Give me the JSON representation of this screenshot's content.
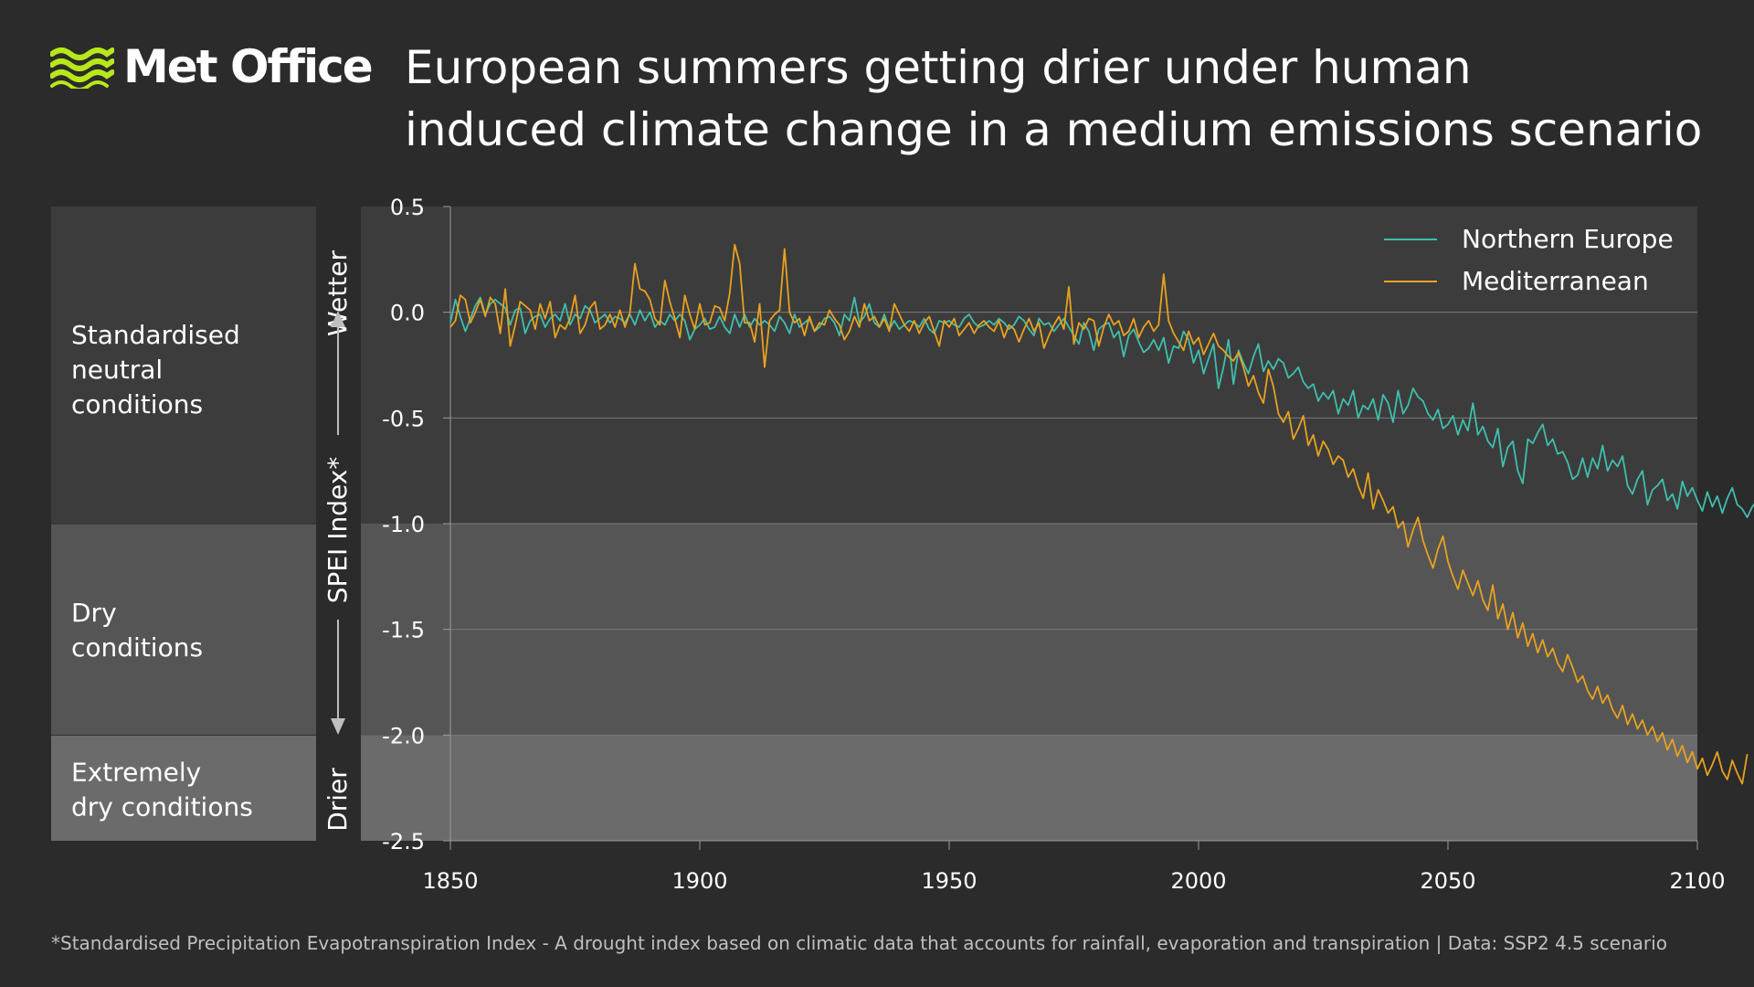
{
  "brand": {
    "name": "Met Office",
    "accent_color": "#b7e81a"
  },
  "title_lines": [
    "European summers getting drier under human",
    "induced climate change in a medium emissions scenario"
  ],
  "bands": [
    {
      "label_lines": [
        "Standardised",
        "neutral",
        "conditions"
      ],
      "y_from": 0.5,
      "y_to": -1.0,
      "color": "#3c3c3c"
    },
    {
      "label_lines": [
        "Dry",
        "conditions"
      ],
      "y_from": -1.0,
      "y_to": -2.0,
      "color": "#555555"
    },
    {
      "label_lines": [
        "Extremely",
        "dry conditions"
      ],
      "y_from": -2.0,
      "y_to": -2.5,
      "color": "#6b6b6b"
    }
  ],
  "axis_annotations": {
    "top": "Wetter",
    "middle": "SPEI Index*",
    "bottom": "Drier"
  },
  "footnote": "*Standardised Precipitation Evapotranspiration Index - A drought index based on climatic data that accounts for rainfall, evaporation and transpiration  |  Data: SSP2 4.5 scenario",
  "chart_data": {
    "type": "line",
    "xlim": [
      1850,
      2100
    ],
    "ylim": [
      -2.5,
      0.5
    ],
    "x_ticks": [
      "1850",
      "1900",
      "1950",
      "2000",
      "2050",
      "2100"
    ],
    "y_ticks": [
      "0.5",
      "0.0",
      "-0.5",
      "-1.0",
      "-1.5",
      "-2.0",
      "-2.5"
    ],
    "gridlines": "horizontal",
    "legend_position": "top-right",
    "series": [
      {
        "name": "Northern Europe",
        "color": "#3fbfad",
        "x_start": 1850,
        "x_step": 1,
        "values": [
          -0.05,
          0.06,
          -0.02,
          -0.09,
          -0.03,
          0.03,
          0.07,
          -0.01,
          0.04,
          0.06,
          0.04,
          0.02,
          -0.06,
          0.01,
          0.02,
          -0.1,
          -0.04,
          -0.02,
          -0.01,
          -0.07,
          -0.03,
          -0.01,
          -0.04,
          0.04,
          -0.06,
          -0.01,
          -0.03,
          0.03,
          0.01,
          -0.05,
          -0.03,
          -0.01,
          -0.05,
          -0.02,
          -0.03,
          -0.05,
          -0.01,
          -0.06,
          0.01,
          -0.04,
          0.0,
          -0.07,
          -0.04,
          -0.06,
          -0.01,
          -0.04,
          -0.01,
          -0.04,
          -0.13,
          -0.08,
          -0.06,
          -0.03,
          -0.08,
          -0.07,
          -0.02,
          -0.07,
          -0.1,
          -0.01,
          -0.07,
          -0.01,
          -0.07,
          -0.03,
          -0.06,
          -0.04,
          -0.06,
          -0.09,
          -0.02,
          -0.05,
          -0.1,
          -0.01,
          -0.07,
          -0.05,
          -0.03,
          -0.09,
          -0.07,
          -0.03,
          -0.02,
          -0.05,
          -0.11,
          -0.01,
          -0.04,
          0.07,
          -0.05,
          -0.02,
          0.04,
          -0.05,
          -0.07,
          -0.01,
          -0.08,
          -0.04,
          -0.08,
          -0.06,
          -0.04,
          -0.05,
          -0.07,
          -0.03,
          -0.08,
          -0.1,
          -0.04,
          -0.05,
          -0.04,
          -0.06,
          -0.07,
          -0.03,
          -0.01,
          -0.05,
          -0.07,
          -0.06,
          -0.04,
          -0.06,
          -0.03,
          -0.05,
          -0.08,
          -0.06,
          -0.02,
          -0.04,
          -0.08,
          -0.11,
          -0.03,
          -0.06,
          -0.05,
          -0.09,
          -0.06,
          -0.03,
          -0.07,
          -0.11,
          -0.15,
          -0.05,
          -0.09,
          -0.18,
          -0.08,
          -0.06,
          -0.05,
          -0.12,
          -0.09,
          -0.21,
          -0.11,
          -0.08,
          -0.14,
          -0.19,
          -0.17,
          -0.13,
          -0.18,
          -0.12,
          -0.24,
          -0.16,
          -0.17,
          -0.09,
          -0.13,
          -0.24,
          -0.18,
          -0.29,
          -0.22,
          -0.15,
          -0.36,
          -0.26,
          -0.13,
          -0.34,
          -0.18,
          -0.24,
          -0.29,
          -0.21,
          -0.15,
          -0.28,
          -0.23,
          -0.27,
          -0.22,
          -0.24,
          -0.31,
          -0.29,
          -0.26,
          -0.33,
          -0.36,
          -0.34,
          -0.42,
          -0.38,
          -0.41,
          -0.37,
          -0.48,
          -0.41,
          -0.44,
          -0.37,
          -0.5,
          -0.44,
          -0.46,
          -0.41,
          -0.51,
          -0.39,
          -0.43,
          -0.52,
          -0.37,
          -0.48,
          -0.44,
          -0.36,
          -0.4,
          -0.42,
          -0.48,
          -0.51,
          -0.46,
          -0.55,
          -0.53,
          -0.49,
          -0.58,
          -0.51,
          -0.56,
          -0.43,
          -0.58,
          -0.54,
          -0.61,
          -0.64,
          -0.55,
          -0.73,
          -0.64,
          -0.61,
          -0.75,
          -0.81,
          -0.6,
          -0.62,
          -0.57,
          -0.53,
          -0.63,
          -0.6,
          -0.67,
          -0.66,
          -0.71,
          -0.79,
          -0.77,
          -0.69,
          -0.78,
          -0.69,
          -0.74,
          -0.63,
          -0.75,
          -0.7,
          -0.73,
          -0.68,
          -0.82,
          -0.86,
          -0.79,
          -0.75,
          -0.91,
          -0.84,
          -0.82,
          -0.79,
          -0.89,
          -0.86,
          -0.93,
          -0.8,
          -0.87,
          -0.83,
          -0.89,
          -0.94,
          -0.85,
          -0.92,
          -0.87,
          -0.95,
          -0.88,
          -0.83,
          -0.91,
          -0.93,
          -0.97,
          -0.92,
          -0.89,
          -1.04,
          -0.92,
          -0.96,
          -0.84,
          -1.0
        ]
      },
      {
        "name": "Mediterranean",
        "color": "#e8a21f",
        "x_start": 1850,
        "x_step": 1,
        "values": [
          -0.07,
          -0.04,
          0.08,
          0.06,
          -0.05,
          0.0,
          0.06,
          -0.02,
          0.07,
          0.04,
          -0.1,
          0.11,
          -0.16,
          -0.06,
          0.05,
          0.03,
          0.01,
          -0.08,
          0.04,
          -0.03,
          0.05,
          -0.12,
          -0.06,
          -0.08,
          -0.03,
          0.08,
          -0.1,
          -0.06,
          0.02,
          0.05,
          -0.08,
          -0.06,
          -0.01,
          -0.07,
          0.01,
          -0.07,
          0.0,
          0.23,
          0.11,
          0.1,
          0.06,
          -0.03,
          -0.06,
          0.15,
          0.05,
          -0.03,
          -0.12,
          0.08,
          -0.01,
          -0.08,
          0.04,
          -0.06,
          -0.05,
          0.03,
          0.02,
          -0.04,
          0.09,
          0.32,
          0.23,
          -0.05,
          -0.05,
          -0.14,
          0.04,
          -0.26,
          -0.04,
          -0.01,
          0.01,
          0.3,
          0.0,
          -0.05,
          -0.03,
          -0.11,
          -0.02,
          -0.09,
          -0.05,
          -0.06,
          0.01,
          -0.03,
          -0.06,
          -0.13,
          -0.09,
          -0.02,
          -0.07,
          0.04,
          -0.04,
          -0.02,
          -0.07,
          -0.03,
          -0.09,
          0.04,
          -0.01,
          -0.06,
          -0.09,
          -0.04,
          -0.1,
          -0.05,
          -0.02,
          -0.09,
          -0.16,
          -0.04,
          -0.07,
          -0.03,
          -0.11,
          -0.08,
          -0.05,
          -0.1,
          -0.06,
          -0.04,
          -0.07,
          -0.09,
          -0.04,
          -0.12,
          -0.06,
          -0.08,
          -0.14,
          -0.08,
          -0.03,
          -0.09,
          -0.05,
          -0.17,
          -0.11,
          -0.06,
          -0.02,
          -0.08,
          0.12,
          -0.15,
          -0.05,
          -0.08,
          -0.03,
          -0.04,
          -0.16,
          -0.07,
          -0.01,
          -0.06,
          -0.04,
          -0.11,
          -0.09,
          -0.03,
          -0.12,
          -0.07,
          -0.04,
          -0.09,
          -0.06,
          0.18,
          -0.04,
          -0.1,
          -0.14,
          -0.18,
          -0.09,
          -0.15,
          -0.12,
          -0.2,
          -0.15,
          -0.1,
          -0.16,
          -0.18,
          -0.21,
          -0.23,
          -0.19,
          -0.26,
          -0.35,
          -0.3,
          -0.38,
          -0.43,
          -0.27,
          -0.35,
          -0.48,
          -0.52,
          -0.47,
          -0.6,
          -0.55,
          -0.49,
          -0.63,
          -0.58,
          -0.68,
          -0.61,
          -0.65,
          -0.72,
          -0.68,
          -0.7,
          -0.78,
          -0.74,
          -0.82,
          -0.88,
          -0.76,
          -0.93,
          -0.84,
          -0.89,
          -0.95,
          -0.92,
          -1.02,
          -0.99,
          -1.11,
          -1.03,
          -0.97,
          -1.08,
          -1.15,
          -1.21,
          -1.12,
          -1.06,
          -1.18,
          -1.25,
          -1.31,
          -1.22,
          -1.28,
          -1.34,
          -1.27,
          -1.36,
          -1.41,
          -1.29,
          -1.45,
          -1.38,
          -1.5,
          -1.42,
          -1.54,
          -1.47,
          -1.58,
          -1.52,
          -1.61,
          -1.55,
          -1.63,
          -1.59,
          -1.66,
          -1.7,
          -1.62,
          -1.68,
          -1.75,
          -1.72,
          -1.79,
          -1.83,
          -1.77,
          -1.85,
          -1.81,
          -1.88,
          -1.92,
          -1.86,
          -1.95,
          -1.9,
          -1.97,
          -1.93,
          -2.0,
          -1.96,
          -2.03,
          -1.99,
          -2.07,
          -2.02,
          -2.1,
          -2.05,
          -2.13,
          -2.08,
          -2.16,
          -2.11,
          -2.19,
          -2.14,
          -2.08,
          -2.17,
          -2.21,
          -2.12,
          -2.18,
          -2.23,
          -2.09
        ]
      }
    ]
  }
}
